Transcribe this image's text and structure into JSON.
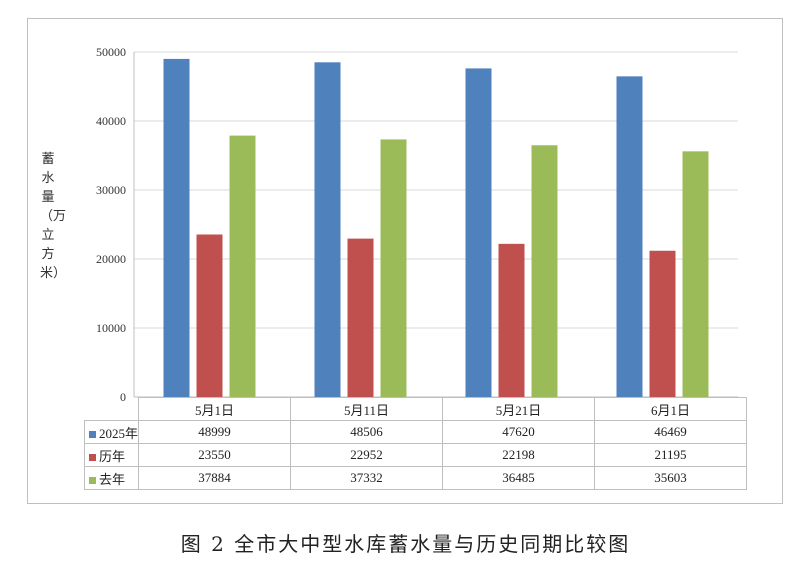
{
  "caption": "图 2   全市大中型水库蓄水量与历史同期比较图",
  "chart_data": {
    "type": "bar",
    "categories": [
      "5月1日",
      "5月11日",
      "5月21日",
      "6月1日"
    ],
    "series": [
      {
        "name": "2025年",
        "color": "#4F81BD",
        "values": [
          48999,
          48506,
          47620,
          46469
        ]
      },
      {
        "name": "历年",
        "color": "#C0504D",
        "values": [
          23550,
          22952,
          22198,
          21195
        ]
      },
      {
        "name": "去年",
        "color": "#9BBB59",
        "values": [
          37884,
          37332,
          36485,
          35603
        ]
      }
    ],
    "ylabel": "蓄水量（万立方米）",
    "ylim": [
      0,
      50000
    ],
    "yticks": [
      0,
      10000,
      20000,
      30000,
      40000,
      50000
    ],
    "grid": true,
    "legend": "data-table"
  }
}
